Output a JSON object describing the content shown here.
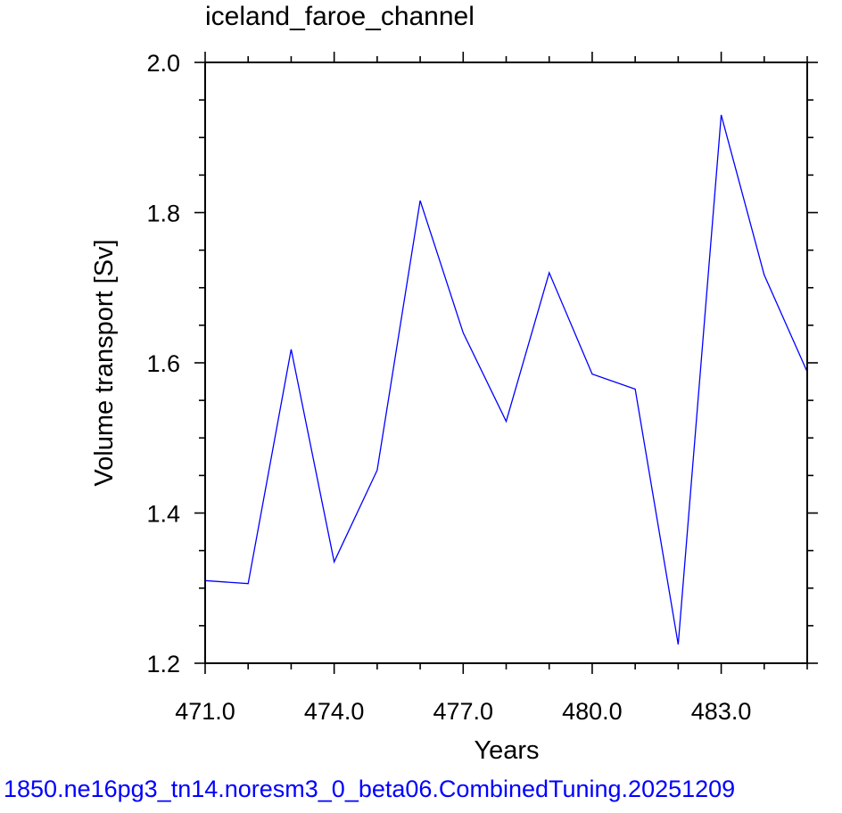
{
  "chart_data": {
    "type": "line",
    "title": "iceland_faroe_channel",
    "xlabel": "Years",
    "ylabel": "Volume transport [Sv]",
    "xlim": [
      471,
      485
    ],
    "ylim": [
      1.2,
      2.0
    ],
    "x_ticks": [
      471,
      474,
      477,
      480,
      483
    ],
    "x_tick_labels": [
      "471.0",
      "474.0",
      "477.0",
      "480.0",
      "483.0"
    ],
    "y_ticks": [
      1.2,
      1.4,
      1.6,
      1.8,
      2.0
    ],
    "y_tick_labels": [
      "1.2",
      "1.4",
      "1.6",
      "1.8",
      "2.0"
    ],
    "grid": false,
    "series": [
      {
        "color": "#0000ff",
        "x": [
          471,
          472,
          473,
          474,
          475,
          476,
          477,
          478,
          479,
          480,
          481,
          482,
          483,
          484,
          485
        ],
        "y": [
          1.31,
          1.306,
          1.618,
          1.335,
          1.457,
          1.816,
          1.64,
          1.522,
          1.72,
          1.585,
          1.565,
          1.225,
          1.93,
          1.717,
          1.588
        ]
      }
    ]
  },
  "footer": {
    "text": "1850.ne16pg3_tn14.noresm3_0_beta06.CombinedTuning.20251209",
    "color": "#0000ff"
  }
}
